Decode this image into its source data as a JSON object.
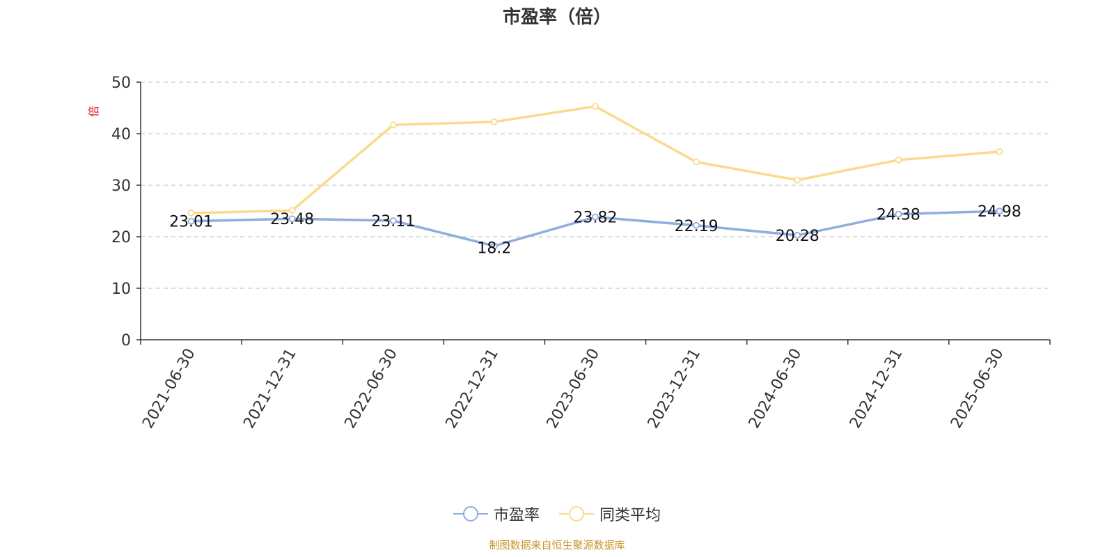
{
  "chart_data": {
    "type": "line",
    "title": "市盈率（倍）",
    "ylabel": "倍",
    "ylim": [
      0,
      50
    ],
    "yticks": [
      0,
      10,
      20,
      30,
      40,
      50
    ],
    "categories": [
      "2021-06-30",
      "2021-12-31",
      "2022-06-30",
      "2022-12-31",
      "2023-06-30",
      "2023-12-31",
      "2024-06-30",
      "2024-12-31",
      "2025-06-30"
    ],
    "series": [
      {
        "name": "市盈率",
        "color": "#8eaedc",
        "values": [
          23.01,
          23.48,
          23.11,
          18.2,
          23.82,
          22.19,
          20.28,
          24.38,
          24.98
        ],
        "labels": [
          "23.01",
          "23.48",
          "23.11",
          "18.2",
          "23.82",
          "22.19",
          "20.28",
          "24.38",
          "24.98"
        ]
      },
      {
        "name": "同类平均",
        "color": "#fbd98f",
        "values": [
          24.6,
          25.1,
          41.7,
          42.3,
          45.3,
          34.5,
          31.0,
          34.9,
          36.5
        ]
      }
    ],
    "grid": true,
    "legend_position": "bottom",
    "source": "制图数据来自恒生聚源数据库",
    "source_color": "#c8962e",
    "ylabel_color": "#e02020"
  }
}
